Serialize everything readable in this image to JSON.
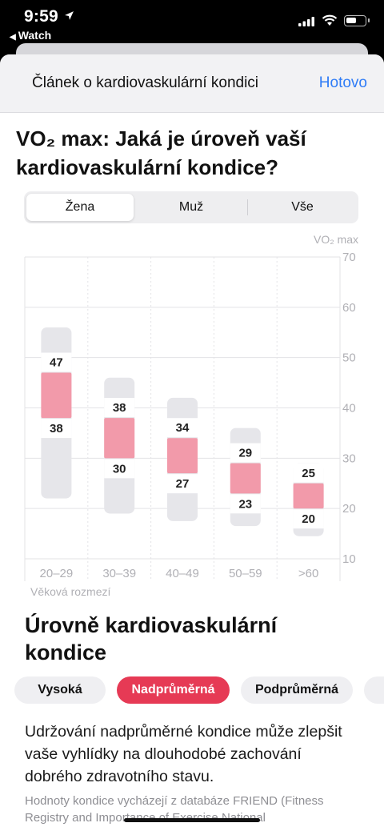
{
  "status_bar": {
    "time": "9:59",
    "back_app": "Watch"
  },
  "nav": {
    "title": "Článek o kardiovaskulární kondici",
    "done": "Hotovo"
  },
  "article": {
    "title_line1": "VO₂ max: Jaká je úroveň vaší",
    "title_line2": "kardiovaskulární kondice?"
  },
  "segmented": {
    "options": [
      "Žena",
      "Muž",
      "Vše"
    ],
    "selected": "Žena"
  },
  "chart_data": {
    "type": "bar",
    "unit_label": "VO₂ max",
    "xlabel": "Věková rozmezí",
    "categories": [
      "20–29",
      "30–39",
      "40–49",
      "50–59",
      ">60"
    ],
    "ylim": [
      10,
      70
    ],
    "y_ticks": [
      10,
      20,
      30,
      40,
      50,
      60,
      70
    ],
    "range_min": [
      22,
      19,
      17.5,
      16.5,
      14.5
    ],
    "range_max": [
      56,
      46,
      42,
      36,
      29
    ],
    "above_average_low": [
      38,
      30,
      27,
      23,
      20
    ],
    "above_average_high": [
      47,
      38,
      34,
      29,
      25
    ],
    "highlight_color": "#f29aaa",
    "range_color": "#e6e6ea"
  },
  "section": {
    "title_line1": "Úrovně kardiovaskulární",
    "title_line2": "kondice"
  },
  "levels": {
    "chips": [
      "Vysoká",
      "Nadprůměrná",
      "Podprůměrná"
    ],
    "active": "Nadprůměrná",
    "active_color": "#e63a55"
  },
  "description": "Udržování nadprůměrné kondice může zlepšit vaše vyhlídky na dlouhodobé zachování dobrého zdravotního stavu.",
  "source_note": "Hodnoty kondice vycházejí z databáze FRIEND (Fitness Registry and Importance of Exercise National"
}
